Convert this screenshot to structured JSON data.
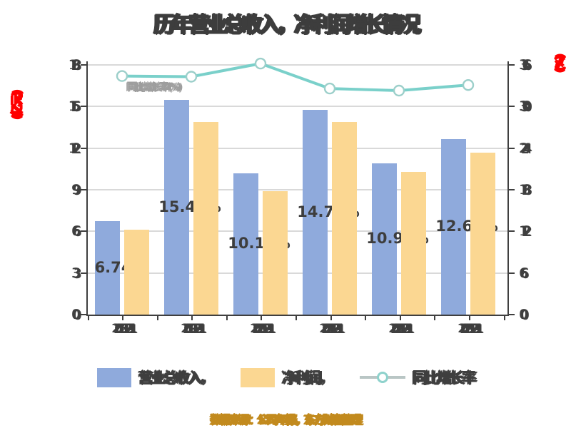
{
  "title": {
    "part1": "历年营业总收入",
    "separator": "，",
    "part2": "净利润增长情况"
  },
  "left_axis": {
    "title": "(亿元)",
    "ticks": [
      "0",
      "3",
      "6",
      "9",
      "12",
      "15",
      "18"
    ]
  },
  "right_axis": {
    "title": "(%)",
    "ticks": [
      "0",
      "6",
      "12",
      "18",
      "24",
      "30",
      "36"
    ]
  },
  "x_axis": {
    "labels": [
      "2018-12-31",
      "2019-12-31",
      "2020-12-31",
      "2021-12-31",
      "2022-12-31",
      "2023-12-31"
    ]
  },
  "bar_labels": [
    "6.74%",
    "15.48%",
    "10.19%",
    "14.76%",
    "10.90%",
    "12.63%"
  ],
  "annotation_faint": "同比增长率(%)",
  "legend": [
    {
      "label": "营业总收入，",
      "swatch": "#8FAADC",
      "type": "bar"
    },
    {
      "label": "净利润，",
      "swatch": "#FBD792",
      "type": "bar"
    },
    {
      "label": "同比增长率",
      "swatch": "#7AD0CA",
      "type": "line"
    }
  ],
  "caption": "数据来源：公司年报，东方财富整理",
  "colors": {
    "bar_blue": "#8FAADC",
    "bar_orange": "#FBD792",
    "line_teal": "#7AD0CA",
    "marker_fill": "#FFFFFF",
    "grid": "#D9D9D9",
    "axis": "#3F3F3F",
    "text_dark": "#3D3D3D",
    "axis_title_red": "#FF0000",
    "caption_gold": "#C28A1E"
  },
  "text_legibility_note": "All CJK strings and tick labels in the source screenshot are rendered as overlapping/garbled glyph blobs; strings here are best-effort reconstructions of blob size and position.",
  "chart_data": {
    "type": "bar+line",
    "categories": [
      "2018-12-31",
      "2019-12-31",
      "2020-12-31",
      "2021-12-31",
      "2022-12-31",
      "2023-12-31"
    ],
    "series": [
      {
        "name": "营业总收入，",
        "type": "bar",
        "axis": "left",
        "color": "#8FAADC",
        "values": [
          6.74,
          15.48,
          10.19,
          14.76,
          10.9,
          12.63
        ],
        "data_labels": [
          "6.74%",
          "15.48%",
          "10.19%",
          "14.76%",
          "10.90%",
          "12.63%"
        ]
      },
      {
        "name": "净利润，",
        "type": "bar",
        "axis": "left",
        "color": "#FBD792",
        "values": [
          6.1,
          13.9,
          8.9,
          13.9,
          10.3,
          11.7
        ]
      },
      {
        "name": "同比增长率",
        "type": "line",
        "axis": "right",
        "color": "#7AD0CA",
        "marker": "circle-white",
        "values": [
          34.4,
          34.3,
          36.2,
          32.6,
          32.3,
          33.1
        ]
      }
    ],
    "left_axis_range": [
      0,
      18
    ],
    "left_tick_values": [
      0,
      3,
      6,
      9,
      12,
      15,
      18
    ],
    "right_axis_range": [
      0,
      36
    ],
    "right_tick_values": [
      0,
      6,
      12,
      18,
      24,
      30,
      36
    ],
    "grid": true,
    "legend_position": "bottom",
    "title": "历年营业总收入，净利润增长情况"
  }
}
